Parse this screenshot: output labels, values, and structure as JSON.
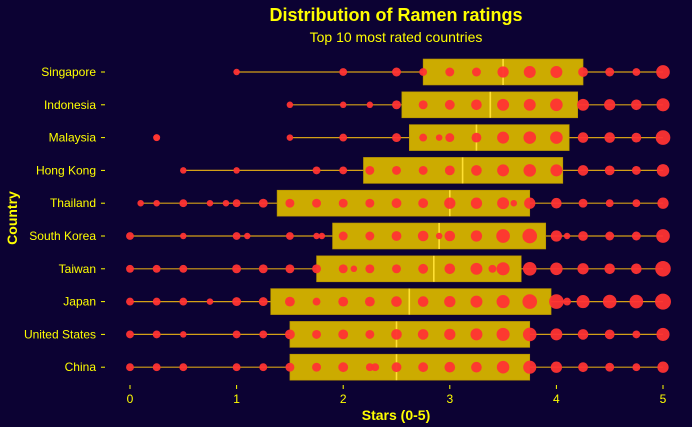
{
  "colors": {
    "background": "#0c0233",
    "text": "#ffff00",
    "box_fill": "#ccab00",
    "median": "#ffe033",
    "whisker": "#d4a017",
    "point": "#ff3333"
  },
  "chart_data": {
    "type": "boxplot",
    "title": "Distribution of Ramen ratings",
    "subtitle": "Top 10 most rated countries",
    "xlabel": "Stars (0-5)",
    "ylabel": "Country",
    "xlim": [
      0,
      5
    ],
    "x_ticks": [
      0,
      1,
      2,
      3,
      4,
      5
    ],
    "grid": false,
    "legend": "none",
    "categories": [
      "Singapore",
      "Indonesia",
      "Malaysia",
      "Hong Kong",
      "Thailand",
      "South Korea",
      "Taiwan",
      "Japan",
      "United States",
      "China"
    ],
    "boxes": [
      {
        "country": "Singapore",
        "whisker_low": 1.0,
        "q1": 2.75,
        "median": 3.5,
        "q3": 4.25,
        "whisker_high": 5.0,
        "outliers": []
      },
      {
        "country": "Indonesia",
        "whisker_low": 1.5,
        "q1": 2.55,
        "median": 3.38,
        "q3": 4.2,
        "whisker_high": 5.0,
        "outliers": []
      },
      {
        "country": "Malaysia",
        "whisker_low": 1.5,
        "q1": 2.62,
        "median": 3.25,
        "q3": 4.12,
        "whisker_high": 5.0,
        "outliers": [
          0.25
        ]
      },
      {
        "country": "Hong Kong",
        "whisker_low": 0.5,
        "q1": 2.19,
        "median": 3.12,
        "q3": 4.06,
        "whisker_high": 5.0,
        "outliers": []
      },
      {
        "country": "Thailand",
        "whisker_low": 0.1,
        "q1": 1.38,
        "median": 3.0,
        "q3": 3.75,
        "whisker_high": 5.0,
        "outliers": []
      },
      {
        "country": "South Korea",
        "whisker_low": 0.0,
        "q1": 1.9,
        "median": 2.9,
        "q3": 3.9,
        "whisker_high": 5.0,
        "outliers": []
      },
      {
        "country": "Taiwan",
        "whisker_low": 0.0,
        "q1": 1.75,
        "median": 2.85,
        "q3": 3.67,
        "whisker_high": 5.0,
        "outliers": []
      },
      {
        "country": "Japan",
        "whisker_low": 0.0,
        "q1": 1.32,
        "median": 2.62,
        "q3": 3.95,
        "whisker_high": 5.0,
        "outliers": []
      },
      {
        "country": "United States",
        "whisker_low": 0.0,
        "q1": 1.5,
        "median": 2.5,
        "q3": 3.75,
        "whisker_high": 5.0,
        "outliers": []
      },
      {
        "country": "China",
        "whisker_low": 0.0,
        "q1": 1.5,
        "median": 2.5,
        "q3": 3.75,
        "whisker_high": 5.0,
        "outliers": []
      }
    ],
    "points_note": "point area scales with count",
    "points": {
      "Singapore": [
        [
          1,
          1
        ],
        [
          2,
          2
        ],
        [
          2.5,
          3
        ],
        [
          2.75,
          2
        ],
        [
          3,
          3
        ],
        [
          3.25,
          3
        ],
        [
          3.5,
          6
        ],
        [
          3.75,
          7
        ],
        [
          4,
          7
        ],
        [
          4.25,
          4
        ],
        [
          4.5,
          3
        ],
        [
          4.75,
          2
        ],
        [
          5,
          10
        ]
      ],
      "Indonesia": [
        [
          1.5,
          1
        ],
        [
          2,
          1
        ],
        [
          2.25,
          1
        ],
        [
          2.5,
          3
        ],
        [
          2.75,
          3
        ],
        [
          3,
          4
        ],
        [
          3.25,
          5
        ],
        [
          3.5,
          7
        ],
        [
          3.75,
          7
        ],
        [
          4,
          8
        ],
        [
          4.25,
          7
        ],
        [
          4.5,
          6
        ],
        [
          4.75,
          5
        ],
        [
          5,
          9
        ]
      ],
      "Malaysia": [
        [
          0.25,
          1
        ],
        [
          1.5,
          1
        ],
        [
          2,
          2
        ],
        [
          2.5,
          3
        ],
        [
          2.75,
          2
        ],
        [
          2.9,
          1
        ],
        [
          3,
          3
        ],
        [
          3.25,
          4
        ],
        [
          3.5,
          7
        ],
        [
          3.75,
          8
        ],
        [
          4,
          8
        ],
        [
          4.25,
          5
        ],
        [
          4.5,
          5
        ],
        [
          4.75,
          4
        ],
        [
          5,
          12
        ]
      ],
      "Hong Kong": [
        [
          0.5,
          1
        ],
        [
          1,
          1
        ],
        [
          1.75,
          2
        ],
        [
          2,
          2
        ],
        [
          2.25,
          3
        ],
        [
          2.5,
          3
        ],
        [
          2.75,
          3
        ],
        [
          3,
          4
        ],
        [
          3.25,
          5
        ],
        [
          3.5,
          7
        ],
        [
          3.75,
          8
        ],
        [
          4,
          7
        ],
        [
          4.25,
          5
        ],
        [
          4.5,
          4
        ],
        [
          4.75,
          3
        ],
        [
          5,
          8
        ]
      ],
      "Thailand": [
        [
          0.1,
          1
        ],
        [
          0.25,
          1
        ],
        [
          0.5,
          2
        ],
        [
          0.75,
          1
        ],
        [
          0.9,
          1
        ],
        [
          1,
          2
        ],
        [
          1.25,
          3
        ],
        [
          1.5,
          3
        ],
        [
          1.75,
          3
        ],
        [
          2,
          3
        ],
        [
          2.25,
          3
        ],
        [
          2.5,
          4
        ],
        [
          2.75,
          4
        ],
        [
          3,
          6
        ],
        [
          3.25,
          6
        ],
        [
          3.5,
          7
        ],
        [
          3.6,
          1
        ],
        [
          3.75,
          6
        ],
        [
          4,
          5
        ],
        [
          4.25,
          3
        ],
        [
          4.5,
          2
        ],
        [
          4.75,
          2
        ],
        [
          5,
          6
        ]
      ],
      "South Korea": [
        [
          0,
          2
        ],
        [
          0.5,
          1
        ],
        [
          1,
          2
        ],
        [
          1.1,
          1
        ],
        [
          1.5,
          2
        ],
        [
          1.75,
          1
        ],
        [
          1.8,
          1
        ],
        [
          2,
          3
        ],
        [
          2.25,
          3
        ],
        [
          2.5,
          4
        ],
        [
          2.75,
          5
        ],
        [
          2.9,
          1
        ],
        [
          3,
          5
        ],
        [
          3.25,
          6
        ],
        [
          3.5,
          10
        ],
        [
          3.75,
          12
        ],
        [
          4,
          6
        ],
        [
          4.1,
          1
        ],
        [
          4.25,
          4
        ],
        [
          4.5,
          3
        ],
        [
          4.75,
          3
        ],
        [
          5,
          10
        ]
      ],
      "Taiwan": [
        [
          0,
          2
        ],
        [
          0.25,
          2
        ],
        [
          0.5,
          2
        ],
        [
          1,
          3
        ],
        [
          1.25,
          3
        ],
        [
          1.5,
          3
        ],
        [
          1.75,
          3
        ],
        [
          2,
          3
        ],
        [
          2.1,
          1
        ],
        [
          2.25,
          3
        ],
        [
          2.5,
          3
        ],
        [
          2.75,
          4
        ],
        [
          3,
          5
        ],
        [
          3.25,
          7
        ],
        [
          3.4,
          2
        ],
        [
          3.5,
          9
        ],
        [
          3.75,
          10
        ],
        [
          4,
          8
        ],
        [
          4.25,
          6
        ],
        [
          4.5,
          5
        ],
        [
          4.75,
          5
        ],
        [
          5,
          14
        ]
      ],
      "Japan": [
        [
          0,
          2
        ],
        [
          0.25,
          2
        ],
        [
          0.5,
          2
        ],
        [
          0.75,
          1
        ],
        [
          1,
          3
        ],
        [
          1.25,
          3
        ],
        [
          1.5,
          4
        ],
        [
          1.75,
          2
        ],
        [
          2,
          4
        ],
        [
          2.25,
          4
        ],
        [
          2.5,
          5
        ],
        [
          2.75,
          5
        ],
        [
          3,
          6
        ],
        [
          3.25,
          7
        ],
        [
          3.5,
          9
        ],
        [
          3.75,
          12
        ],
        [
          4,
          12
        ],
        [
          4.1,
          2
        ],
        [
          4.25,
          9
        ],
        [
          4.5,
          10
        ],
        [
          4.75,
          10
        ],
        [
          5,
          15
        ]
      ],
      "United States": [
        [
          0,
          2
        ],
        [
          0.25,
          2
        ],
        [
          0.5,
          1
        ],
        [
          1,
          2
        ],
        [
          1.25,
          2
        ],
        [
          1.5,
          4
        ],
        [
          1.75,
          3
        ],
        [
          2,
          4
        ],
        [
          2.25,
          3
        ],
        [
          2.5,
          5
        ],
        [
          2.75,
          5
        ],
        [
          3,
          6
        ],
        [
          3.25,
          7
        ],
        [
          3.5,
          9
        ],
        [
          3.75,
          10
        ],
        [
          4,
          7
        ],
        [
          4.25,
          5
        ],
        [
          4.5,
          4
        ],
        [
          4.75,
          2
        ],
        [
          5,
          9
        ]
      ],
      "China": [
        [
          0,
          2
        ],
        [
          0.25,
          2
        ],
        [
          0.5,
          2
        ],
        [
          1,
          2
        ],
        [
          1.25,
          2
        ],
        [
          1.5,
          3
        ],
        [
          1.75,
          3
        ],
        [
          2,
          4
        ],
        [
          2.25,
          2
        ],
        [
          2.3,
          2
        ],
        [
          2.5,
          4
        ],
        [
          2.75,
          4
        ],
        [
          3,
          5
        ],
        [
          3.25,
          5
        ],
        [
          3.5,
          8
        ],
        [
          3.75,
          9
        ],
        [
          4,
          6
        ],
        [
          4.25,
          4
        ],
        [
          4.5,
          3
        ],
        [
          4.75,
          2
        ],
        [
          5,
          6
        ]
      ]
    }
  }
}
